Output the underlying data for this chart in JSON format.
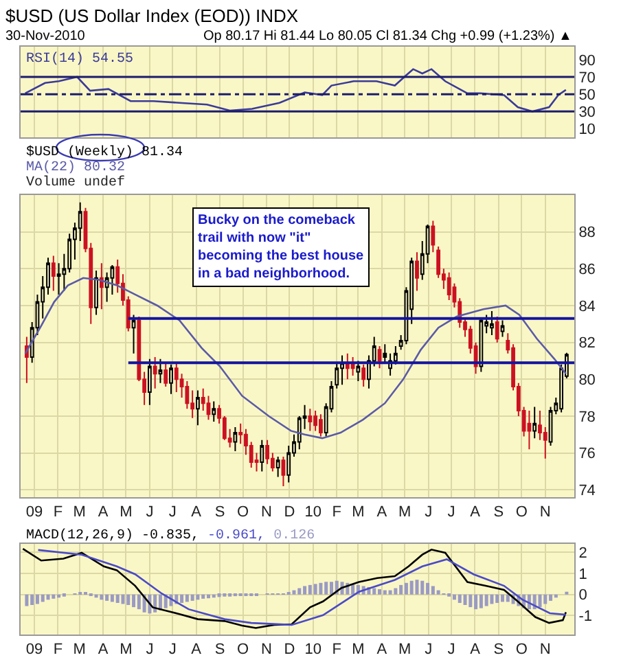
{
  "chart_data": [
    {
      "type": "line",
      "title": "$USD (US Dollar Index (EOD)) INDX",
      "subtitle": "30-Nov-2010",
      "annotations": [
        "Op 80.17 Hi 81.44 Lo 80.05 Cl 81.34 Chg +0.99 (+1.23%) ▲"
      ],
      "series": [
        {
          "name": "RSI(14) 54.55",
          "color": "#3a3a9a",
          "x": [
            "2008-12-20",
            "2009-01-15",
            "2009-02-02",
            "2009-02-26",
            "2009-03-15",
            "2009-04-08",
            "2009-05-07",
            "2009-06-06",
            "2009-07-10",
            "2009-08-15",
            "2009-09-14",
            "2009-10-13",
            "2009-11-18",
            "2009-12-21",
            "2010-01-13",
            "2010-01-25",
            "2010-02-23",
            "2010-03-25",
            "2010-04-18",
            "2010-05-03",
            "2010-05-12",
            "2010-05-24",
            "2010-06-05",
            "2010-06-23",
            "2010-07-22",
            "2010-08-08",
            "2010-09-08",
            "2010-09-26",
            "2010-10-15",
            "2010-11-06",
            "2010-11-18",
            "2010-11-28"
          ],
          "values": [
            51,
            63,
            65,
            70,
            54,
            56,
            42,
            42,
            40,
            38,
            31,
            33,
            40,
            52,
            49,
            60,
            65,
            65,
            60,
            72,
            79,
            74,
            79,
            65,
            51,
            51,
            49,
            35,
            30,
            35,
            49,
            55
          ]
        }
      ],
      "ref_lines": [
        {
          "axis": "y",
          "value": 70,
          "color": "#1c1c6e",
          "line_style": "solid"
        },
        {
          "axis": "y",
          "value": 50,
          "color": "#1c1c6e",
          "line_style": "dashed"
        },
        {
          "axis": "y",
          "value": 30,
          "color": "#1c1c6e",
          "line_style": "solid"
        }
      ],
      "xlim": [
        "2008-12-14",
        "2010-12-09"
      ],
      "xticks": [
        {
          "value": "2009-01-01",
          "label": null
        },
        {
          "value": "2009-02-01",
          "label": null
        },
        {
          "value": "2009-03-01",
          "label": null
        },
        {
          "value": "2009-04-01",
          "label": null
        },
        {
          "value": "2009-05-01",
          "label": null
        },
        {
          "value": "2009-06-01",
          "label": null
        },
        {
          "value": "2009-07-01",
          "label": null
        },
        {
          "value": "2009-08-01",
          "label": null
        },
        {
          "value": "2009-09-01",
          "label": null
        },
        {
          "value": "2009-10-01",
          "label": null
        },
        {
          "value": "2009-11-01",
          "label": null
        },
        {
          "value": "2009-12-01",
          "label": null
        },
        {
          "value": "2010-01-01",
          "label": null
        },
        {
          "value": "2010-02-01",
          "label": null
        },
        {
          "value": "2010-03-01",
          "label": null
        },
        {
          "value": "2010-04-01",
          "label": null
        },
        {
          "value": "2010-05-01",
          "label": null
        },
        {
          "value": "2010-06-01",
          "label": null
        },
        {
          "value": "2010-07-01",
          "label": null
        },
        {
          "value": "2010-08-01",
          "label": null
        },
        {
          "value": "2010-09-01",
          "label": null
        },
        {
          "value": "2010-10-01",
          "label": null
        },
        {
          "value": "2010-11-01",
          "label": null
        }
      ],
      "ylim": [
        0,
        105
      ],
      "yticks": [
        10,
        30,
        50,
        70,
        90
      ],
      "grid": "x",
      "tick_labels": "y",
      "legend": "top left"
    },
    {
      "type": "candlestick",
      "annotations": [
        "Volume undef",
        "Bucky on the comeback trail with now \"it\" becoming the best house in a bad neighborhood."
      ],
      "series": [
        {
          "type": "candlestick",
          "name": "$USD (Weekly) 81.34",
          "x": [
            "2008-12-22",
            "2008-12-29",
            "2009-01-05",
            "2009-01-12",
            "2009-01-19",
            "2009-01-26",
            "2009-02-02",
            "2009-02-09",
            "2009-02-16",
            "2009-02-23",
            "2009-03-02",
            "2009-03-09",
            "2009-03-16",
            "2009-03-23",
            "2009-03-30",
            "2009-04-06",
            "2009-04-13",
            "2009-04-20",
            "2009-04-27",
            "2009-05-04",
            "2009-05-11",
            "2009-05-18",
            "2009-05-25",
            "2009-06-01",
            "2009-06-08",
            "2009-06-15",
            "2009-06-22",
            "2009-06-29",
            "2009-07-06",
            "2009-07-13",
            "2009-07-20",
            "2009-07-27",
            "2009-08-03",
            "2009-08-10",
            "2009-08-17",
            "2009-08-24",
            "2009-08-31",
            "2009-09-07",
            "2009-09-14",
            "2009-09-21",
            "2009-09-28",
            "2009-10-05",
            "2009-10-12",
            "2009-10-19",
            "2009-10-26",
            "2009-11-02",
            "2009-11-09",
            "2009-11-16",
            "2009-11-23",
            "2009-11-30",
            "2009-12-07",
            "2009-12-14",
            "2009-12-21",
            "2009-12-28",
            "2010-01-04",
            "2010-01-11",
            "2010-01-18",
            "2010-01-25",
            "2010-02-01",
            "2010-02-08",
            "2010-02-15",
            "2010-02-22",
            "2010-03-01",
            "2010-03-08",
            "2010-03-15",
            "2010-03-22",
            "2010-03-29",
            "2010-04-05",
            "2010-04-12",
            "2010-04-19",
            "2010-04-26",
            "2010-05-03",
            "2010-05-10",
            "2010-05-17",
            "2010-05-24",
            "2010-05-31",
            "2010-06-07",
            "2010-06-14",
            "2010-06-21",
            "2010-06-28",
            "2010-07-05",
            "2010-07-12",
            "2010-07-19",
            "2010-07-26",
            "2010-08-02",
            "2010-08-09",
            "2010-08-16",
            "2010-08-23",
            "2010-08-30",
            "2010-09-06",
            "2010-09-13",
            "2010-09-20",
            "2010-09-27",
            "2010-10-04",
            "2010-10-11",
            "2010-10-18",
            "2010-10-25",
            "2010-11-01",
            "2010-11-08",
            "2010-11-15",
            "2010-11-22",
            "2010-11-29"
          ],
          "ohlc": [
            [
              81.8,
              82.3,
              79.8,
              81.2
            ],
            [
              81.2,
              83.1,
              80.9,
              82.8
            ],
            [
              82.8,
              84.6,
              82.4,
              84.2
            ],
            [
              84.2,
              85.6,
              83.3,
              85.0
            ],
            [
              85.0,
              86.6,
              84.6,
              86.3
            ],
            [
              86.3,
              86.7,
              84.8,
              85.6
            ],
            [
              85.6,
              86.3,
              84.6,
              85.7
            ],
            [
              85.7,
              86.8,
              84.8,
              86.0
            ],
            [
              86.0,
              87.9,
              85.8,
              87.6
            ],
            [
              87.6,
              88.5,
              86.5,
              88.2
            ],
            [
              88.2,
              89.6,
              87.5,
              89.1
            ],
            [
              89.1,
              89.3,
              86.9,
              87.1
            ],
            [
              87.1,
              87.4,
              83.0,
              83.9
            ],
            [
              83.9,
              85.9,
              83.5,
              85.5
            ],
            [
              85.5,
              86.3,
              83.8,
              85.0
            ],
            [
              85.0,
              85.8,
              84.2,
              85.5
            ],
            [
              85.5,
              86.2,
              84.6,
              86.1
            ],
            [
              86.1,
              86.5,
              84.7,
              85.2
            ],
            [
              85.2,
              85.7,
              84.0,
              84.3
            ],
            [
              84.3,
              84.5,
              82.6,
              82.8
            ],
            [
              82.8,
              83.5,
              81.4,
              83.2
            ],
            [
              83.2,
              83.4,
              79.9,
              80.0
            ],
            [
              80.0,
              80.4,
              78.6,
              79.3
            ],
            [
              79.3,
              81.1,
              78.6,
              80.7
            ],
            [
              80.7,
              81.2,
              79.5,
              80.3
            ],
            [
              80.3,
              81.1,
              79.8,
              80.5
            ],
            [
              80.5,
              80.9,
              79.6,
              79.8
            ],
            [
              79.8,
              80.8,
              79.2,
              80.6
            ],
            [
              80.6,
              80.9,
              79.3,
              80.0
            ],
            [
              80.0,
              80.3,
              79.0,
              79.6
            ],
            [
              79.6,
              79.9,
              78.4,
              78.7
            ],
            [
              78.7,
              79.4,
              77.9,
              78.4
            ],
            [
              78.4,
              79.4,
              77.5,
              79.0
            ],
            [
              79.0,
              79.5,
              78.3,
              78.7
            ],
            [
              78.7,
              79.1,
              77.8,
              78.1
            ],
            [
              78.1,
              78.8,
              77.7,
              78.4
            ],
            [
              78.4,
              78.6,
              77.6,
              77.9
            ],
            [
              77.9,
              78.0,
              76.7,
              76.8
            ],
            [
              76.8,
              77.3,
              76.3,
              76.6
            ],
            [
              76.6,
              77.4,
              76.1,
              77.1
            ],
            [
              77.1,
              77.6,
              76.5,
              77.0
            ],
            [
              77.0,
              77.3,
              75.9,
              76.4
            ],
            [
              76.4,
              76.6,
              75.2,
              75.5
            ],
            [
              75.6,
              76.0,
              75.0,
              75.5
            ],
            [
              75.5,
              76.7,
              75.0,
              76.4
            ],
            [
              76.4,
              76.7,
              75.4,
              75.7
            ],
            [
              75.7,
              76.0,
              75.0,
              75.2
            ],
            [
              75.2,
              75.8,
              74.7,
              75.6
            ],
            [
              75.6,
              75.8,
              74.2,
              74.8
            ],
            [
              74.8,
              76.4,
              74.4,
              76.0
            ],
            [
              76.0,
              77.0,
              75.8,
              76.6
            ],
            [
              76.6,
              78.0,
              76.2,
              77.9
            ],
            [
              77.9,
              78.6,
              77.3,
              78.0
            ],
            [
              78.0,
              78.4,
              77.2,
              77.7
            ],
            [
              78.0,
              78.3,
              77.2,
              77.5
            ],
            [
              77.8,
              78.1,
              76.9,
              77.1
            ],
            [
              77.1,
              78.7,
              76.9,
              78.5
            ],
            [
              78.4,
              79.9,
              78.2,
              79.6
            ],
            [
              79.7,
              80.9,
              79.5,
              80.6
            ],
            [
              80.6,
              81.3,
              79.7,
              80.9
            ],
            [
              80.9,
              81.4,
              80.0,
              80.6
            ],
            [
              80.8,
              81.2,
              80.2,
              80.6
            ],
            [
              80.4,
              81.0,
              79.9,
              80.7
            ],
            [
              80.6,
              80.8,
              79.6,
              80.0
            ],
            [
              80.0,
              81.3,
              79.5,
              81.0
            ],
            [
              81.0,
              82.3,
              80.7,
              81.8
            ],
            [
              81.6,
              81.8,
              80.6,
              81.0
            ],
            [
              81.4,
              81.9,
              80.9,
              81.2
            ],
            [
              80.6,
              81.4,
              80.2,
              81.0
            ],
            [
              81.0,
              81.8,
              80.8,
              81.4
            ],
            [
              81.8,
              82.4,
              81.6,
              82.1
            ],
            [
              82.1,
              85.0,
              81.9,
              84.8
            ],
            [
              83.8,
              86.6,
              83.0,
              86.4
            ],
            [
              86.4,
              86.9,
              84.8,
              85.5
            ],
            [
              85.7,
              87.5,
              85.4,
              86.8
            ],
            [
              86.8,
              88.4,
              86.3,
              88.3
            ],
            [
              88.3,
              88.6,
              86.9,
              87.3
            ],
            [
              87.0,
              87.2,
              85.5,
              85.7
            ],
            [
              85.7,
              86.0,
              84.9,
              85.4
            ],
            [
              85.5,
              85.8,
              84.3,
              84.6
            ],
            [
              85.0,
              85.2,
              83.9,
              84.2
            ],
            [
              84.2,
              84.4,
              82.8,
              83.1
            ],
            [
              83.1,
              83.3,
              82.3,
              82.7
            ],
            [
              82.7,
              82.9,
              81.4,
              81.7
            ],
            [
              81.8,
              82.0,
              80.3,
              80.7
            ],
            [
              80.7,
              83.3,
              80.4,
              83.2
            ],
            [
              82.9,
              83.5,
              82.5,
              83.1
            ],
            [
              82.8,
              83.7,
              82.4,
              83.0
            ],
            [
              83.1,
              83.4,
              82.0,
              82.2
            ],
            [
              82.6,
              83.2,
              82.3,
              82.9
            ],
            [
              82.1,
              82.5,
              81.4,
              81.6
            ],
            [
              81.7,
              81.9,
              79.4,
              79.6
            ],
            [
              79.6,
              79.8,
              78.0,
              78.3
            ],
            [
              78.3,
              78.5,
              76.9,
              77.2
            ],
            [
              77.6,
              78.3,
              76.2,
              77.2
            ],
            [
              77.2,
              78.5,
              76.8,
              77.6
            ],
            [
              77.5,
              78.3,
              76.7,
              77.1
            ],
            [
              77.1,
              77.4,
              75.7,
              76.7
            ],
            [
              76.6,
              78.5,
              76.4,
              78.3
            ],
            [
              78.3,
              79.0,
              78.1,
              78.7
            ],
            [
              78.4,
              80.8,
              78.2,
              80.6
            ],
            [
              80.17,
              81.44,
              80.05,
              81.34
            ]
          ],
          "colors": [
            "#cc1122",
            "#000000",
            "#000000",
            "#000000",
            "#000000",
            "#cc1122",
            "#000000",
            "#000000",
            "#000000",
            "#000000",
            "#000000",
            "#cc1122",
            "#cc1122",
            "#000000",
            "#cc1122",
            "#000000",
            "#000000",
            "#cc1122",
            "#cc1122",
            "#cc1122",
            "#000000",
            "#cc1122",
            "#cc1122",
            "#000000",
            "#cc1122",
            "#000000",
            "#cc1122",
            "#000000",
            "#cc1122",
            "#cc1122",
            "#cc1122",
            "#cc1122",
            "#000000",
            "#cc1122",
            "#cc1122",
            "#000000",
            "#cc1122",
            "#cc1122",
            "#cc1122",
            "#000000",
            "#cc1122",
            "#cc1122",
            "#cc1122",
            "#cc1122",
            "#000000",
            "#cc1122",
            "#cc1122",
            "#000000",
            "#cc1122",
            "#000000",
            "#000000",
            "#000000",
            "#000000",
            "#cc1122",
            "#cc1122",
            "#cc1122",
            "#000000",
            "#000000",
            "#000000",
            "#000000",
            "#cc1122",
            "#cc1122",
            "#000000",
            "#cc1122",
            "#000000",
            "#000000",
            "#cc1122",
            "#000000",
            "#000000",
            "#000000",
            "#000000",
            "#000000",
            "#000000",
            "#cc1122",
            "#000000",
            "#000000",
            "#cc1122",
            "#cc1122",
            "#cc1122",
            "#cc1122",
            "#cc1122",
            "#cc1122",
            "#cc1122",
            "#cc1122",
            "#cc1122",
            "#000000",
            "#000000",
            "#000000",
            "#cc1122",
            "#000000",
            "#cc1122",
            "#cc1122",
            "#cc1122",
            "#cc1122",
            "#cc1122",
            "#000000",
            "#cc1122",
            "#cc1122",
            "#000000",
            "#000000",
            "#000000",
            "#000000"
          ]
        },
        {
          "type": "line",
          "name": "MA(22) 80.32",
          "color": "#5a5aa8",
          "x": [
            "2008-12-20",
            "2009-01-10",
            "2009-01-27",
            "2009-02-14",
            "2009-03-06",
            "2009-03-27",
            "2009-04-19",
            "2009-05-13",
            "2009-06-11",
            "2009-07-10",
            "2009-08-08",
            "2009-09-01",
            "2009-09-30",
            "2009-11-04",
            "2009-12-03",
            "2009-12-21",
            "2010-01-13",
            "2010-02-06",
            "2010-03-07",
            "2010-04-05",
            "2010-04-29",
            "2010-05-22",
            "2010-06-14",
            "2010-07-08",
            "2010-08-12",
            "2010-09-10",
            "2010-09-28",
            "2010-10-21",
            "2010-11-13",
            "2010-11-28"
          ],
          "values": [
            81.4,
            82.9,
            84.2,
            85.1,
            85.5,
            85.4,
            85.1,
            84.6,
            84.0,
            83.2,
            81.7,
            80.7,
            79.1,
            78.0,
            77.2,
            77.0,
            76.8,
            77.1,
            77.8,
            78.7,
            80.0,
            81.6,
            82.8,
            83.4,
            83.8,
            84.0,
            83.5,
            82.2,
            81.1,
            80.3
          ]
        },
        {
          "type": "line",
          "color": "#1414a0",
          "x": [
            "2009-05-04",
            "2010-12-09"
          ],
          "values": [
            83.3,
            83.3
          ]
        },
        {
          "type": "line",
          "color": "#1414a0",
          "x": [
            "2009-05-04",
            "2010-12-09"
          ],
          "values": [
            80.9,
            80.9
          ]
        }
      ],
      "xlim": [
        "2008-12-14",
        "2010-12-09"
      ],
      "xticks": [
        {
          "value": "2009-01-01",
          "label": "09"
        },
        {
          "value": "2009-02-01",
          "label": "F"
        },
        {
          "value": "2009-03-01",
          "label": "M"
        },
        {
          "value": "2009-04-01",
          "label": "A"
        },
        {
          "value": "2009-05-01",
          "label": "M"
        },
        {
          "value": "2009-06-01",
          "label": "J"
        },
        {
          "value": "2009-07-01",
          "label": "J"
        },
        {
          "value": "2009-08-01",
          "label": "A"
        },
        {
          "value": "2009-09-01",
          "label": "S"
        },
        {
          "value": "2009-10-01",
          "label": "O"
        },
        {
          "value": "2009-11-01",
          "label": "N"
        },
        {
          "value": "2009-12-01",
          "label": "D"
        },
        {
          "value": "2010-01-01",
          "label": "10"
        },
        {
          "value": "2010-02-01",
          "label": "F"
        },
        {
          "value": "2010-03-01",
          "label": "M"
        },
        {
          "value": "2010-04-01",
          "label": "A"
        },
        {
          "value": "2010-05-01",
          "label": "M"
        },
        {
          "value": "2010-06-01",
          "label": "J"
        },
        {
          "value": "2010-07-01",
          "label": "J"
        },
        {
          "value": "2010-08-01",
          "label": "A"
        },
        {
          "value": "2010-09-01",
          "label": "S"
        },
        {
          "value": "2010-10-01",
          "label": "O"
        },
        {
          "value": "2010-11-01",
          "label": "N"
        }
      ],
      "ylim": [
        73.6,
        90.0
      ],
      "yticks": [
        74,
        76,
        78,
        80,
        82,
        84,
        86,
        88
      ],
      "grid": true,
      "legend": "top left"
    },
    {
      "type": "line",
      "series": [
        {
          "name": "MACD(12,26,9) -0.835,",
          "color": "#000000",
          "x": [
            "2008-12-17",
            "2009-01-10",
            "2009-02-08",
            "2009-03-04",
            "2009-04-02",
            "2009-04-19",
            "2009-05-13",
            "2009-06-05",
            "2009-07-10",
            "2009-08-03",
            "2009-09-07",
            "2009-09-30",
            "2009-10-18",
            "2009-11-11",
            "2009-12-04",
            "2009-12-28",
            "2010-01-14",
            "2010-02-07",
            "2010-03-02",
            "2010-03-26",
            "2010-04-18",
            "2010-05-06",
            "2010-05-24",
            "2010-06-05",
            "2010-06-23",
            "2010-07-22",
            "2010-08-15",
            "2010-09-08",
            "2010-09-26",
            "2010-10-19",
            "2010-11-06",
            "2010-11-24",
            "2010-11-28"
          ],
          "values": [
            2.17,
            1.61,
            1.7,
            1.98,
            1.33,
            1.15,
            0.41,
            -0.61,
            -0.93,
            -1.17,
            -1.26,
            -1.48,
            -1.59,
            -1.44,
            -1.41,
            -0.61,
            -0.33,
            0.31,
            0.59,
            0.78,
            0.87,
            1.33,
            1.89,
            2.13,
            1.98,
            0.59,
            0.41,
            0.22,
            -0.33,
            -1.07,
            -1.35,
            -1.22,
            -0.84
          ]
        },
        {
          "name": "-0.961,",
          "color": "#4a4ac8",
          "x": [
            "2009-01-06",
            "2009-03-04",
            "2009-04-19",
            "2009-05-13",
            "2009-06-17",
            "2009-07-22",
            "2009-09-07",
            "2009-10-12",
            "2009-12-04",
            "2010-01-14",
            "2010-03-02",
            "2010-04-18",
            "2010-05-24",
            "2010-06-25",
            "2010-07-30",
            "2010-09-08",
            "2010-10-02",
            "2010-11-07",
            "2010-11-28"
          ],
          "values": [
            2.11,
            1.89,
            1.33,
            0.96,
            0.04,
            -0.7,
            -1.17,
            -1.35,
            -1.44,
            -0.98,
            0.13,
            0.69,
            1.33,
            1.67,
            0.96,
            0.41,
            -0.24,
            -0.89,
            -0.96
          ]
        },
        {
          "type": "bar",
          "name": "0.126",
          "color": "#9a9ac4",
          "x": [
            "2008-12-22",
            "2008-12-29",
            "2009-01-05",
            "2009-01-12",
            "2009-01-19",
            "2009-01-26",
            "2009-02-02",
            "2009-02-09",
            "2009-02-16",
            "2009-02-23",
            "2009-03-02",
            "2009-03-09",
            "2009-03-16",
            "2009-03-23",
            "2009-03-30",
            "2009-04-06",
            "2009-04-13",
            "2009-04-20",
            "2009-04-27",
            "2009-05-04",
            "2009-05-11",
            "2009-05-18",
            "2009-05-25",
            "2009-06-01",
            "2009-06-08",
            "2009-06-15",
            "2009-06-22",
            "2009-06-29",
            "2009-07-06",
            "2009-07-13",
            "2009-07-20",
            "2009-07-27",
            "2009-08-03",
            "2009-08-10",
            "2009-08-17",
            "2009-08-24",
            "2009-08-31",
            "2009-09-07",
            "2009-09-14",
            "2009-09-21",
            "2009-09-28",
            "2009-10-05",
            "2009-10-12",
            "2009-10-19",
            "2009-10-26",
            "2009-11-02",
            "2009-11-09",
            "2009-11-16",
            "2009-11-23",
            "2009-11-30",
            "2009-12-07",
            "2009-12-14",
            "2009-12-21",
            "2009-12-28",
            "2010-01-04",
            "2010-01-11",
            "2010-01-18",
            "2010-01-25",
            "2010-02-01",
            "2010-02-08",
            "2010-02-15",
            "2010-02-22",
            "2010-03-01",
            "2010-03-08",
            "2010-03-15",
            "2010-03-22",
            "2010-03-29",
            "2010-04-05",
            "2010-04-12",
            "2010-04-19",
            "2010-04-26",
            "2010-05-03",
            "2010-05-10",
            "2010-05-17",
            "2010-05-24",
            "2010-05-31",
            "2010-06-07",
            "2010-06-14",
            "2010-06-21",
            "2010-06-28",
            "2010-07-05",
            "2010-07-12",
            "2010-07-19",
            "2010-07-26",
            "2010-08-02",
            "2010-08-09",
            "2010-08-16",
            "2010-08-23",
            "2010-08-30",
            "2010-09-06",
            "2010-09-13",
            "2010-09-20",
            "2010-09-27",
            "2010-10-04",
            "2010-10-11",
            "2010-10-18",
            "2010-10-25",
            "2010-11-01",
            "2010-11-08",
            "2010-11-15",
            "2010-11-22",
            "2010-11-29"
          ],
          "values": [
            -0.55,
            -0.5,
            -0.45,
            -0.35,
            -0.25,
            -0.2,
            -0.15,
            -0.1,
            0.0,
            0.05,
            0.12,
            0.08,
            -0.05,
            -0.15,
            -0.25,
            -0.3,
            -0.35,
            -0.4,
            -0.45,
            -0.5,
            -0.6,
            -0.7,
            -0.85,
            -0.9,
            -0.85,
            -0.75,
            -0.65,
            -0.55,
            -0.45,
            -0.4,
            -0.35,
            -0.3,
            -0.25,
            -0.2,
            -0.18,
            -0.15,
            -0.12,
            -0.1,
            -0.1,
            -0.08,
            -0.05,
            -0.05,
            -0.03,
            -0.02,
            0.0,
            0.02,
            0.03,
            0.05,
            0.05,
            0.1,
            0.2,
            0.3,
            0.4,
            0.45,
            0.5,
            0.55,
            0.6,
            0.6,
            0.65,
            0.6,
            0.55,
            0.5,
            0.45,
            0.4,
            0.35,
            0.3,
            0.25,
            0.2,
            0.2,
            0.3,
            0.45,
            0.55,
            0.65,
            0.7,
            0.65,
            0.55,
            0.4,
            0.2,
            0.05,
            -0.1,
            -0.25,
            -0.4,
            -0.5,
            -0.6,
            -0.7,
            -0.65,
            -0.55,
            -0.45,
            -0.4,
            -0.35,
            -0.35,
            -0.45,
            -0.55,
            -0.65,
            -0.7,
            -0.7,
            -0.6,
            -0.45,
            -0.3,
            -0.15,
            0.0,
            0.13
          ]
        }
      ],
      "xlim": [
        "2008-12-14",
        "2010-12-09"
      ],
      "xticks": [
        {
          "value": "2009-01-01",
          "label": "09"
        },
        {
          "value": "2009-02-01",
          "label": "F"
        },
        {
          "value": "2009-03-01",
          "label": "M"
        },
        {
          "value": "2009-04-01",
          "label": "A"
        },
        {
          "value": "2009-05-01",
          "label": "M"
        },
        {
          "value": "2009-06-01",
          "label": "J"
        },
        {
          "value": "2009-07-01",
          "label": "J"
        },
        {
          "value": "2009-08-01",
          "label": "A"
        },
        {
          "value": "2009-09-01",
          "label": "S"
        },
        {
          "value": "2009-10-01",
          "label": "O"
        },
        {
          "value": "2009-11-01",
          "label": "N"
        },
        {
          "value": "2009-12-01",
          "label": "D"
        },
        {
          "value": "2010-01-01",
          "label": "10"
        },
        {
          "value": "2010-02-01",
          "label": "F"
        },
        {
          "value": "2010-03-01",
          "label": "M"
        },
        {
          "value": "2010-04-01",
          "label": "A"
        },
        {
          "value": "2010-05-01",
          "label": "M"
        },
        {
          "value": "2010-06-01",
          "label": "J"
        },
        {
          "value": "2010-07-01",
          "label": "J"
        },
        {
          "value": "2010-08-01",
          "label": "A"
        },
        {
          "value": "2010-09-01",
          "label": "S"
        },
        {
          "value": "2010-10-01",
          "label": "O"
        },
        {
          "value": "2010-11-01",
          "label": "N"
        }
      ],
      "ylim": [
        -1.9,
        2.4
      ],
      "yticks": [
        -1,
        0,
        1,
        2
      ],
      "grid": true,
      "legend": "top left"
    }
  ]
}
